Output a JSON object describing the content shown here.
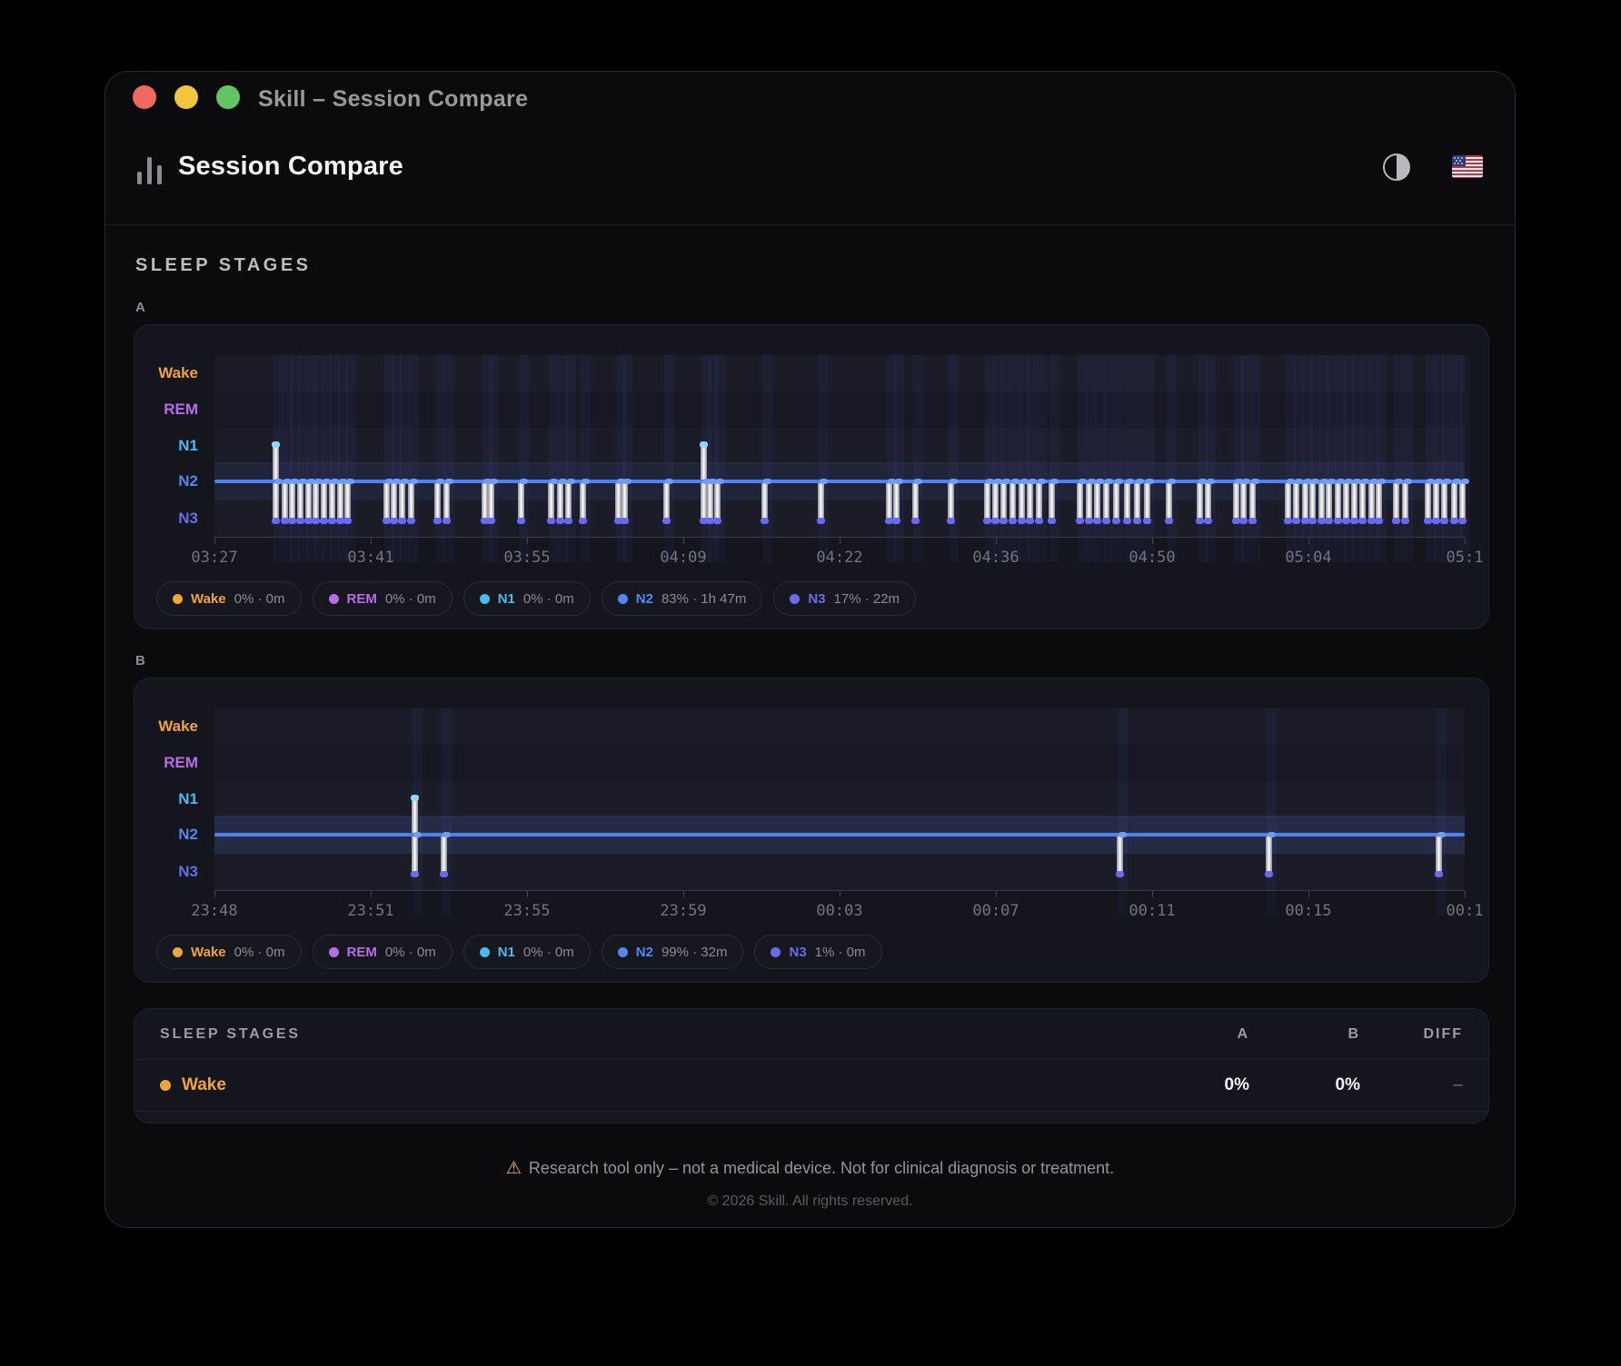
{
  "titlebar": {
    "title": "Skill – Session Compare"
  },
  "header": {
    "title": "Session Compare",
    "theme_toggle": "dark-light-toggle",
    "language_flag": "US"
  },
  "section": {
    "title": "SLEEP STAGES",
    "a_label": "A",
    "b_label": "B"
  },
  "colors": {
    "wake": "#efa43e",
    "rem": "#b76ce8",
    "n1": "#4db9f0",
    "n2": "#5586f0",
    "n3": "#6b6cea",
    "baseline_line": "#4f82f0",
    "bar_fill": "#f2f3f7",
    "n3_cap": "#686af0",
    "n1_cap": "#8fd6fb",
    "band_a": "rgba(93,115,185,0.14)",
    "band_b": "rgba(93,115,185,0.22)"
  },
  "chart_data": [
    {
      "type": "hypnogram",
      "session": "A",
      "stages": [
        "Wake",
        "REM",
        "N1",
        "N2",
        "N3"
      ],
      "baseline_stage": "N2",
      "x_ticks": [
        "03:27",
        "03:41",
        "03:55",
        "04:09",
        "04:22",
        "04:36",
        "04:50",
        "05:04",
        "05:1"
      ],
      "events": {
        "tall_n1_to_n3": [
          0.049,
          0.391
        ],
        "deep_n2_to_n3": [
          0.056,
          0.062,
          0.068,
          0.075,
          0.081,
          0.087,
          0.094,
          0.1,
          0.106,
          0.137,
          0.143,
          0.15,
          0.157,
          0.178,
          0.185,
          0.216,
          0.221,
          0.245,
          0.269,
          0.276,
          0.283,
          0.294,
          0.323,
          0.328,
          0.361,
          0.396,
          0.402,
          0.44,
          0.485,
          0.539,
          0.545,
          0.56,
          0.589,
          0.618,
          0.624,
          0.631,
          0.638,
          0.645,
          0.652,
          0.659,
          0.669,
          0.692,
          0.699,
          0.706,
          0.713,
          0.721,
          0.73,
          0.738,
          0.746,
          0.763,
          0.788,
          0.794,
          0.817,
          0.823,
          0.83,
          0.858,
          0.865,
          0.872,
          0.878,
          0.885,
          0.891,
          0.898,
          0.905,
          0.911,
          0.918,
          0.925,
          0.931,
          0.945,
          0.952,
          0.97,
          0.977,
          0.983,
          0.991,
          0.998
        ]
      },
      "legend": [
        {
          "stage": "Wake",
          "value": "0% · 0m"
        },
        {
          "stage": "REM",
          "value": "0% · 0m"
        },
        {
          "stage": "N1",
          "value": "0% · 0m"
        },
        {
          "stage": "N2",
          "value": "83% · 1h 47m"
        },
        {
          "stage": "N3",
          "value": "17% · 22m"
        }
      ]
    },
    {
      "type": "hypnogram",
      "session": "B",
      "stages": [
        "Wake",
        "REM",
        "N1",
        "N2",
        "N3"
      ],
      "baseline_stage": "N2",
      "x_ticks": [
        "23:48",
        "23:51",
        "23:55",
        "23:59",
        "00:03",
        "00:07",
        "00:11",
        "00:15",
        "00:1"
      ],
      "events": {
        "tall_n1_to_n3": [
          0.16
        ],
        "deep_n2_to_n3": [
          0.183,
          0.724,
          0.843,
          0.979
        ]
      },
      "legend": [
        {
          "stage": "Wake",
          "value": "0% · 0m"
        },
        {
          "stage": "REM",
          "value": "0% · 0m"
        },
        {
          "stage": "N1",
          "value": "0% · 0m"
        },
        {
          "stage": "N2",
          "value": "99% · 32m"
        },
        {
          "stage": "N3",
          "value": "1% · 0m"
        }
      ]
    }
  ],
  "table": {
    "title": "SLEEP STAGES",
    "columns": [
      "A",
      "B",
      "DIFF"
    ],
    "rows": [
      {
        "stage": "Wake",
        "a": "0%",
        "b": "0%",
        "diff": "–"
      }
    ]
  },
  "footer": {
    "warning": "Research tool only – not a medical device. Not for clinical diagnosis or treatment.",
    "copyright": "© 2026 Skill. All rights reserved."
  }
}
